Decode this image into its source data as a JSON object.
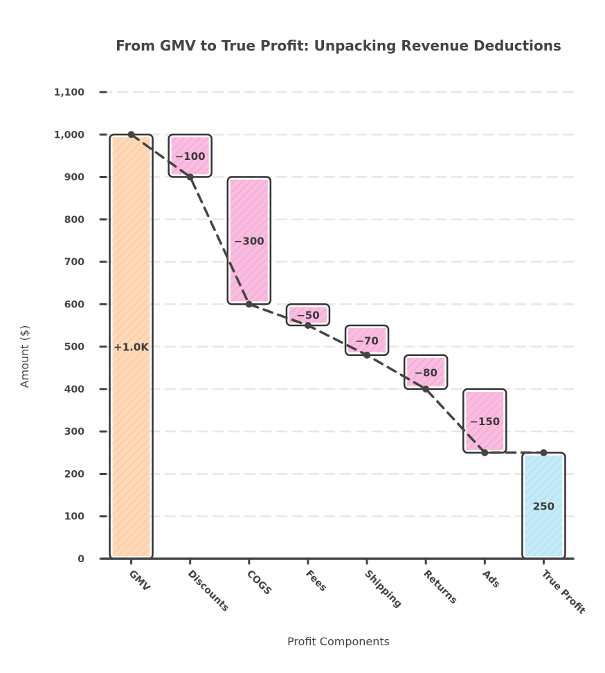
{
  "chart_data": {
    "type": "bar",
    "subtype": "waterfall",
    "title": "From GMV to True Profit: Unpacking Revenue Deductions",
    "xlabel": "Profit Components",
    "ylabel": "Amount ($)",
    "ylim": [
      0,
      1100
    ],
    "yticks": [
      0,
      100,
      200,
      300,
      400,
      500,
      600,
      700,
      800,
      900,
      1000,
      1100
    ],
    "ytick_labels": [
      "0",
      "100",
      "200",
      "300",
      "400",
      "500",
      "600",
      "700",
      "800",
      "900",
      "1,000",
      "1,100"
    ],
    "grid": true,
    "legend": "none",
    "categories": [
      "GMV",
      "Discounts",
      "COGS",
      "Fees",
      "Shipping",
      "Returns",
      "Ads",
      "True Profit"
    ],
    "values": [
      1000,
      -100,
      -300,
      -50,
      -70,
      -80,
      -150,
      250
    ],
    "measures": [
      "absolute",
      "relative",
      "relative",
      "relative",
      "relative",
      "relative",
      "relative",
      "total"
    ],
    "bar_labels": [
      "+1.0K",
      "−100",
      "−300",
      "−50",
      "−70",
      "−80",
      "−150",
      "250"
    ],
    "colors": {
      "increase": "#ffd9b8",
      "decrease": "#f9bde0",
      "total": "#c4ebf7",
      "outline": "#333333",
      "connector": "#444444",
      "grid": "#e6e6e6"
    }
  }
}
